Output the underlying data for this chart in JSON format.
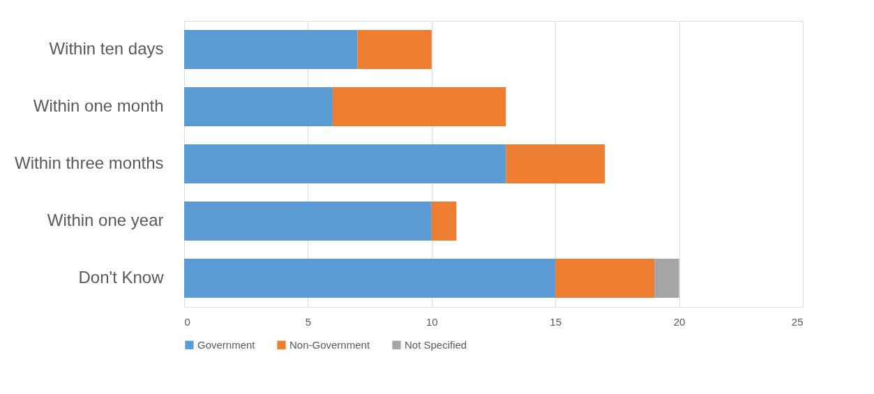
{
  "chart_data": {
    "type": "bar",
    "orientation": "horizontal",
    "stacked": true,
    "categories": [
      "Within ten days",
      "Within one month",
      "Within three months",
      "Within one year",
      "Don't Know"
    ],
    "series": [
      {
        "name": "Government",
        "color": "#5b9bd5",
        "values": [
          7,
          6,
          13,
          10,
          15
        ]
      },
      {
        "name": "Non-Government",
        "color": "#ed7d31",
        "values": [
          3,
          7,
          4,
          1,
          4
        ]
      },
      {
        "name": "Not Specified",
        "color": "#a5a5a5",
        "values": [
          null,
          null,
          null,
          null,
          1
        ]
      }
    ],
    "xlim": [
      0,
      25
    ],
    "xticks": [
      0,
      5,
      10,
      15,
      20,
      25
    ],
    "grid": "x",
    "legend": "bottom"
  }
}
